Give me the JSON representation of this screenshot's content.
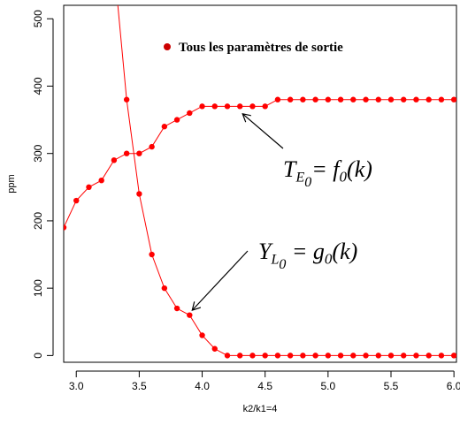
{
  "chart_data": {
    "type": "line",
    "xlabel": "k2/k1=4",
    "ylabel": "ppm",
    "xlim": [
      2.9,
      6.02
    ],
    "ylim": [
      -10,
      520
    ],
    "x_ticks": [
      "3.0",
      "3.5",
      "4.0",
      "4.5",
      "5.0",
      "5.5",
      "6.0"
    ],
    "x_tick_values": [
      3.0,
      3.5,
      4.0,
      4.5,
      5.0,
      5.5,
      6.0
    ],
    "y_ticks": [
      "0",
      "100",
      "200",
      "300",
      "400",
      "500"
    ],
    "y_tick_values": [
      0,
      100,
      200,
      300,
      400,
      500
    ],
    "legend": {
      "label": "Tous les paramètres de sortie",
      "color": "#cc0000",
      "placement": "top-center"
    },
    "series": [
      {
        "x": [
          2.9,
          3.0,
          3.1,
          3.2,
          3.3,
          3.4,
          3.5,
          3.6,
          3.7,
          3.8,
          3.9,
          4.0,
          4.1,
          4.2,
          4.3,
          4.4,
          4.5,
          4.6,
          4.7,
          4.8,
          4.9,
          5.0,
          5.1,
          5.2,
          5.3,
          5.4,
          5.5,
          5.6,
          5.7,
          5.8,
          5.9,
          6.0
        ],
        "y": [
          190,
          230,
          250,
          260,
          290,
          300,
          300,
          310,
          340,
          350,
          360,
          370,
          370,
          370,
          370,
          370,
          370,
          380,
          380,
          380,
          380,
          380,
          380,
          380,
          380,
          380,
          380,
          380,
          380,
          380,
          380,
          380
        ],
        "color": "#ff0000"
      },
      {
        "x": [
          3.4,
          3.5,
          3.6,
          3.7,
          3.8,
          3.9,
          4.0,
          4.1,
          4.2,
          4.3,
          4.4,
          4.5,
          4.6,
          4.7,
          4.8,
          4.9,
          5.0,
          5.1,
          5.2,
          5.3,
          5.4,
          5.5,
          5.6,
          5.7,
          5.8,
          5.9,
          6.0
        ],
        "y": [
          380,
          240,
          150,
          100,
          70,
          60,
          30,
          10,
          0,
          0,
          0,
          0,
          0,
          0,
          0,
          0,
          0,
          0,
          0,
          0,
          0,
          0,
          0,
          0,
          0,
          0,
          0
        ],
        "color": "#ff0000",
        "curve_extends_to": [
          3.33,
          520
        ]
      }
    ],
    "annotations": [
      {
        "base": "T",
        "sub1": "E",
        "sub2": "0",
        "rest": "= f",
        "sub3": "0",
        "tail": "(k)",
        "points_to": [
          4.3,
          372
        ]
      },
      {
        "base": "Y",
        "sub1": "L",
        "sub2": "0",
        "rest": " = g",
        "sub3": "0",
        "tail": "(k)",
        "points_to": [
          3.9,
          62
        ]
      }
    ]
  }
}
